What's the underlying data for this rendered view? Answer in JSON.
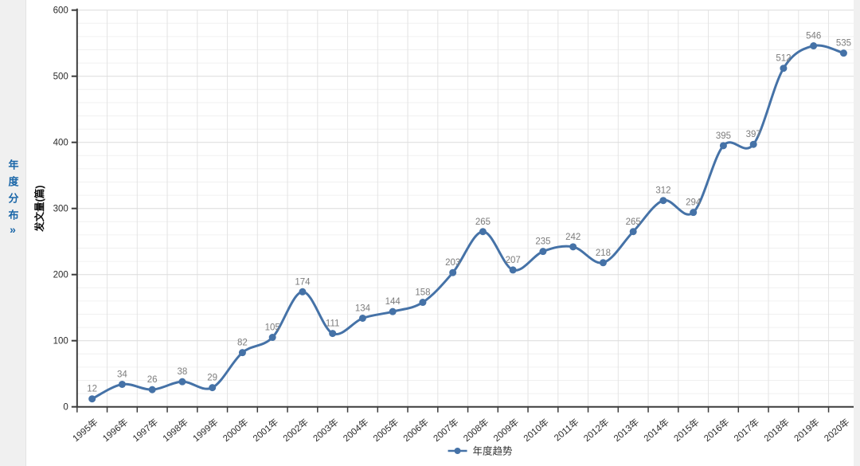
{
  "sidebar": {
    "title": "年度分布",
    "expand_icon": "»"
  },
  "chart_data": {
    "type": "line",
    "title": "",
    "categories": [
      "1995年",
      "1996年",
      "1997年",
      "1998年",
      "1999年",
      "2000年",
      "2001年",
      "2002年",
      "2003年",
      "2004年",
      "2005年",
      "2006年",
      "2007年",
      "2008年",
      "2009年",
      "2010年",
      "2011年",
      "2012年",
      "2013年",
      "2014年",
      "2015年",
      "2016年",
      "2017年",
      "2018年",
      "2019年",
      "2020年"
    ],
    "series": [
      {
        "name": "年度趋势",
        "values": [
          12,
          34,
          26,
          38,
          29,
          82,
          105,
          174,
          111,
          134,
          144,
          158,
          203,
          265,
          207,
          235,
          242,
          218,
          265,
          312,
          294,
          395,
          397,
          512,
          546,
          535
        ]
      }
    ],
    "xlabel": "",
    "ylabel": "发文量(篇)",
    "ylim": [
      0,
      600
    ],
    "y_tick_step": 100,
    "y_minor_step": 20,
    "grid": true,
    "legend_position": "bottom-center",
    "smooth": true,
    "colors": {
      "line": "#4572a7",
      "marker": "#4572a7",
      "data_label": "#7d7d7d",
      "axis_line": "#3c3c3c",
      "tick_label": "#2b2b2b",
      "major_grid": "#dcdcdc",
      "minor_grid": "#f0f0f0",
      "vertical_grid": "#e4e4e4"
    }
  }
}
